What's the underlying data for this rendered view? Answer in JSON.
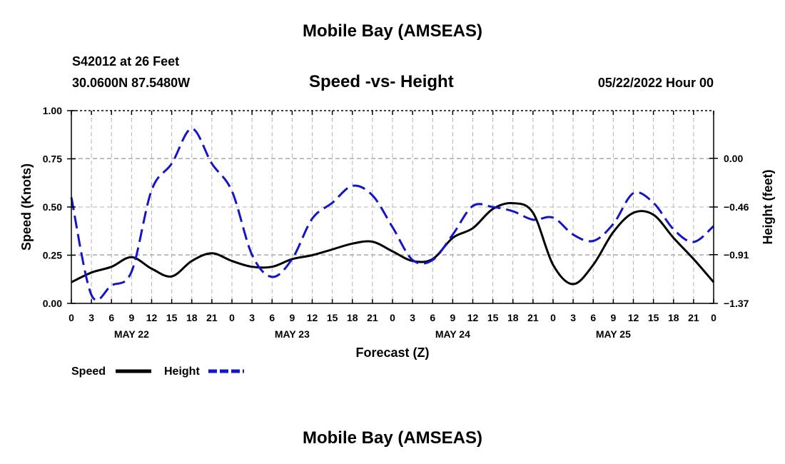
{
  "header": {
    "title": "Mobile Bay (AMSEAS)",
    "station": "S42012 at 26 Feet",
    "coordinates": "30.0600N  87.5480W",
    "datetime": "05/22/2022 Hour 00"
  },
  "footer": {
    "title": "Mobile Bay (AMSEAS)"
  },
  "chart_data": {
    "type": "line",
    "title": "Speed -vs- Height",
    "xlabel": "Forecast (Z)",
    "ylabel": "Speed (Knots)",
    "y2label": "Height (feet)",
    "x_hours": [
      0,
      3,
      6,
      9,
      12,
      15,
      18,
      21,
      24,
      27,
      30,
      33,
      36,
      39,
      42,
      45,
      48,
      51,
      54,
      57,
      60,
      63,
      66,
      69,
      72,
      75,
      78,
      81,
      84,
      87,
      90,
      93,
      96
    ],
    "x_tick_labels": [
      "0",
      "3",
      "6",
      "9",
      "12",
      "15",
      "18",
      "21",
      "0",
      "3",
      "6",
      "9",
      "12",
      "15",
      "18",
      "21",
      "0",
      "3",
      "6",
      "9",
      "12",
      "15",
      "18",
      "21",
      "0",
      "3",
      "6",
      "9",
      "12",
      "15",
      "18",
      "21",
      "0"
    ],
    "date_labels": [
      {
        "label": "MAY 22",
        "hour": 9
      },
      {
        "label": "MAY 23",
        "hour": 33
      },
      {
        "label": "MAY 24",
        "hour": 57
      },
      {
        "label": "MAY 25",
        "hour": 81
      }
    ],
    "ylim": [
      0,
      1
    ],
    "y_ticks": [
      0,
      0.25,
      0.5,
      0.75,
      1
    ],
    "y_tick_labels": [
      "0.00",
      "0.25",
      "0.50",
      "0.75",
      "1.00"
    ],
    "y2lim": [
      -1.37,
      0.45
    ],
    "y2_ticks": [
      -1.37,
      -0.91,
      -0.46,
      0.0
    ],
    "y2_tick_labels": [
      "−1.37",
      "−0.91",
      "−0.46",
      "0.00"
    ],
    "grid": true,
    "legend": {
      "position": "bottom-left",
      "entries": [
        {
          "label": "Speed",
          "color": "#000000",
          "style": "solid"
        },
        {
          "label": "Height",
          "color": "#1515c8",
          "style": "dashed"
        }
      ]
    },
    "series": [
      {
        "name": "Speed",
        "axis": "left",
        "color": "#000000",
        "style": "solid",
        "values": [
          0.11,
          0.16,
          0.19,
          0.24,
          0.18,
          0.14,
          0.22,
          0.26,
          0.22,
          0.19,
          0.19,
          0.23,
          0.25,
          0.28,
          0.31,
          0.32,
          0.27,
          0.22,
          0.23,
          0.34,
          0.39,
          0.49,
          0.52,
          0.47,
          0.2,
          0.1,
          0.2,
          0.37,
          0.47,
          0.46,
          0.34,
          0.23,
          0.11
        ]
      },
      {
        "name": "Height",
        "axis": "right",
        "color": "#1515c8",
        "style": "dashed",
        "values": [
          -0.37,
          -1.29,
          -1.2,
          -1.07,
          -0.3,
          -0.05,
          0.28,
          -0.05,
          -0.31,
          -0.91,
          -1.12,
          -0.95,
          -0.57,
          -0.42,
          -0.26,
          -0.35,
          -0.65,
          -0.96,
          -0.96,
          -0.72,
          -0.45,
          -0.46,
          -0.5,
          -0.58,
          -0.56,
          -0.72,
          -0.78,
          -0.62,
          -0.33,
          -0.42,
          -0.67,
          -0.79,
          -0.64
        ]
      }
    ]
  }
}
